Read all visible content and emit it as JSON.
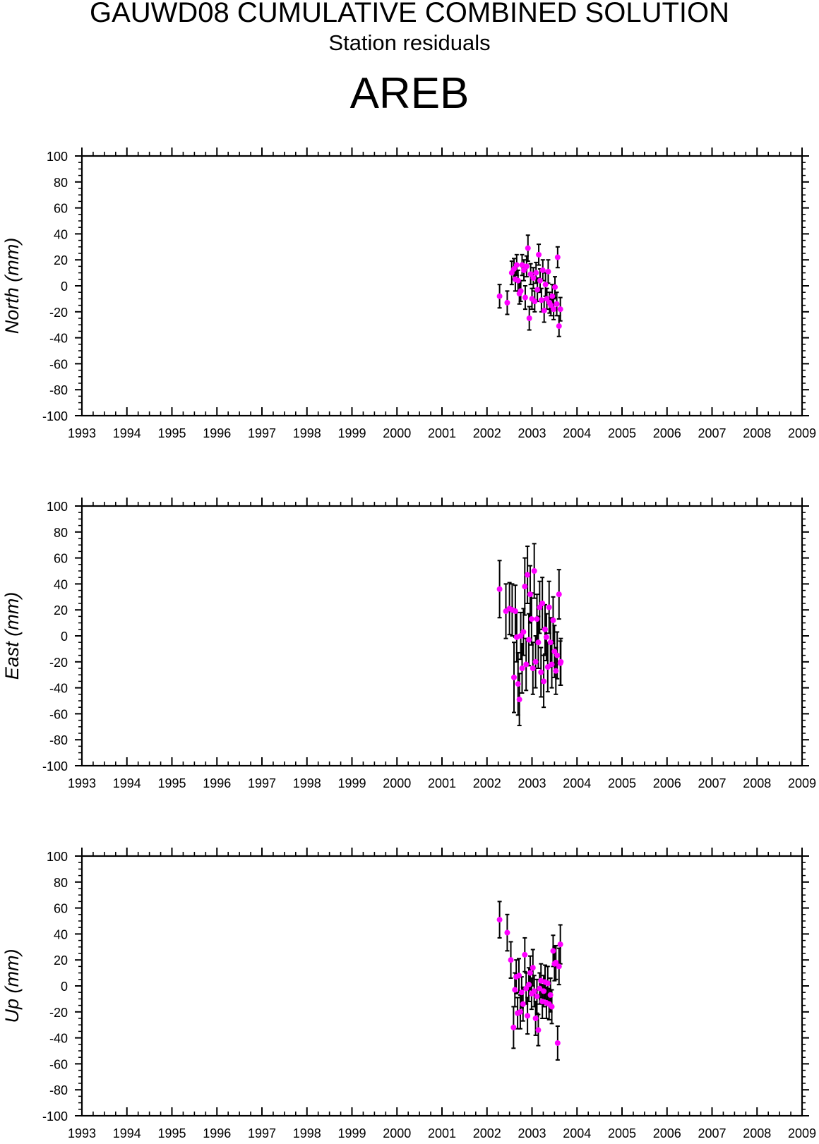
{
  "header": {
    "title": "GAUWD08 CUMULATIVE COMBINED SOLUTION",
    "subtitle": "Station residuals",
    "station": "AREB"
  },
  "colors": {
    "marker": "#ff00ff",
    "errorbar": "#000000",
    "axes": "#000000"
  },
  "chart_data": [
    {
      "type": "scatter",
      "ylabel": "North (mm)",
      "xlim": [
        1993,
        2009
      ],
      "ylim": [
        -100,
        100
      ],
      "xticks": [
        "1993",
        "1994",
        "1995",
        "1996",
        "1997",
        "1998",
        "1999",
        "2000",
        "2001",
        "2002",
        "2003",
        "2004",
        "2005",
        "2006",
        "2007",
        "2008",
        "2009"
      ],
      "yticks": [
        "100",
        "80",
        "60",
        "40",
        "20",
        "0",
        "-20",
        "-40",
        "-60",
        "-80",
        "-100"
      ],
      "grid": false,
      "series": [
        {
          "points": [
            [
              2002.28,
              -8,
              9
            ],
            [
              2002.45,
              -13,
              9
            ],
            [
              2002.55,
              10,
              9
            ],
            [
              2002.6,
              13,
              8
            ],
            [
              2002.63,
              5,
              9
            ],
            [
              2002.66,
              16,
              8
            ],
            [
              2002.69,
              4,
              8
            ],
            [
              2002.72,
              -6,
              8
            ],
            [
              2002.75,
              -4,
              8
            ],
            [
              2002.78,
              16,
              8
            ],
            [
              2002.82,
              12,
              8
            ],
            [
              2002.85,
              -9,
              9
            ],
            [
              2002.88,
              15,
              8
            ],
            [
              2002.91,
              29,
              10
            ],
            [
              2002.94,
              -25,
              9
            ],
            [
              2002.97,
              9,
              8
            ],
            [
              2003.0,
              -10,
              8
            ],
            [
              2003.03,
              6,
              8
            ],
            [
              2003.06,
              -12,
              8
            ],
            [
              2003.09,
              10,
              8
            ],
            [
              2003.12,
              -3,
              9
            ],
            [
              2003.15,
              24,
              8
            ],
            [
              2003.18,
              4,
              9
            ],
            [
              2003.21,
              -11,
              9
            ],
            [
              2003.24,
              12,
              8
            ],
            [
              2003.27,
              -19,
              9
            ],
            [
              2003.3,
              1,
              9
            ],
            [
              2003.33,
              -10,
              8
            ],
            [
              2003.36,
              11,
              9
            ],
            [
              2003.39,
              -13,
              8
            ],
            [
              2003.42,
              -15,
              8
            ],
            [
              2003.45,
              -8,
              9
            ],
            [
              2003.48,
              -18,
              8
            ],
            [
              2003.51,
              -1,
              8
            ],
            [
              2003.55,
              -14,
              9
            ],
            [
              2003.57,
              22,
              8
            ],
            [
              2003.6,
              -31,
              8
            ],
            [
              2003.63,
              -18,
              9
            ]
          ]
        }
      ]
    },
    {
      "type": "scatter",
      "ylabel": "East (mm)",
      "xlim": [
        1993,
        2009
      ],
      "ylim": [
        -100,
        100
      ],
      "xticks": [
        "1993",
        "1994",
        "1995",
        "1996",
        "1997",
        "1998",
        "1999",
        "2000",
        "2001",
        "2002",
        "2003",
        "2004",
        "2005",
        "2006",
        "2007",
        "2008",
        "2009"
      ],
      "yticks": [
        "100",
        "80",
        "60",
        "40",
        "20",
        "0",
        "-20",
        "-40",
        "-60",
        "-80",
        "-100"
      ],
      "grid": false,
      "series": [
        {
          "points": [
            [
              2002.28,
              36,
              22
            ],
            [
              2002.42,
              19,
              21
            ],
            [
              2002.5,
              21,
              20
            ],
            [
              2002.56,
              20,
              20
            ],
            [
              2002.6,
              -32,
              27
            ],
            [
              2002.63,
              19,
              20
            ],
            [
              2002.66,
              -1,
              19
            ],
            [
              2002.69,
              -37,
              24
            ],
            [
              2002.72,
              -49,
              20
            ],
            [
              2002.75,
              0,
              18
            ],
            [
              2002.78,
              -25,
              19
            ],
            [
              2002.81,
              3,
              18
            ],
            [
              2002.84,
              38,
              22
            ],
            [
              2002.87,
              -22,
              20
            ],
            [
              2002.9,
              47,
              22
            ],
            [
              2002.93,
              -3,
              20
            ],
            [
              2002.96,
              32,
              22
            ],
            [
              2002.99,
              13,
              20
            ],
            [
              2003.02,
              -25,
              20
            ],
            [
              2003.05,
              50,
              21
            ],
            [
              2003.08,
              -20,
              20
            ],
            [
              2003.11,
              13,
              19
            ],
            [
              2003.14,
              -5,
              20
            ],
            [
              2003.17,
              22,
              20
            ],
            [
              2003.2,
              -28,
              19
            ],
            [
              2003.23,
              25,
              20
            ],
            [
              2003.26,
              -35,
              20
            ],
            [
              2003.29,
              5,
              19
            ],
            [
              2003.32,
              -1,
              18
            ],
            [
              2003.35,
              -24,
              19
            ],
            [
              2003.38,
              22,
              20
            ],
            [
              2003.41,
              -5,
              19
            ],
            [
              2003.44,
              -22,
              18
            ],
            [
              2003.47,
              12,
              18
            ],
            [
              2003.5,
              -12,
              20
            ],
            [
              2003.53,
              -27,
              18
            ],
            [
              2003.56,
              -15,
              18
            ],
            [
              2003.6,
              32,
              19
            ],
            [
              2003.63,
              -21,
              17
            ],
            [
              2003.64,
              -20,
              18
            ]
          ]
        }
      ]
    },
    {
      "type": "scatter",
      "ylabel": "Up (mm)",
      "xlim": [
        1993,
        2009
      ],
      "ylim": [
        -100,
        100
      ],
      "xticks": [
        "1993",
        "1994",
        "1995",
        "1996",
        "1997",
        "1998",
        "1999",
        "2000",
        "2001",
        "2002",
        "2003",
        "2004",
        "2005",
        "2006",
        "2007",
        "2008",
        "2009"
      ],
      "yticks": [
        "100",
        "80",
        "60",
        "40",
        "20",
        "0",
        "-20",
        "-40",
        "-60",
        "-80",
        "-100"
      ],
      "grid": false,
      "series": [
        {
          "points": [
            [
              2002.28,
              51,
              14
            ],
            [
              2002.45,
              41,
              14
            ],
            [
              2002.53,
              20,
              14
            ],
            [
              2002.59,
              -32,
              16
            ],
            [
              2002.62,
              -3,
              13
            ],
            [
              2002.65,
              7,
              13
            ],
            [
              2002.68,
              -21,
              12
            ],
            [
              2002.71,
              8,
              13
            ],
            [
              2002.74,
              -20,
              13
            ],
            [
              2002.77,
              -5,
              12
            ],
            [
              2002.8,
              -14,
              13
            ],
            [
              2002.84,
              24,
              13
            ],
            [
              2002.87,
              -2,
              12
            ],
            [
              2002.9,
              -23,
              14
            ],
            [
              2002.93,
              1,
              13
            ],
            [
              2002.96,
              10,
              13
            ],
            [
              2002.99,
              -6,
              12
            ],
            [
              2003.02,
              14,
              14
            ],
            [
              2003.05,
              -4,
              12
            ],
            [
              2003.08,
              -25,
              13
            ],
            [
              2003.11,
              -8,
              13
            ],
            [
              2003.14,
              -34,
              12
            ],
            [
              2003.17,
              -2,
              12
            ],
            [
              2003.2,
              4,
              13
            ],
            [
              2003.23,
              -12,
              13
            ],
            [
              2003.26,
              -4,
              12
            ],
            [
              2003.29,
              3,
              13
            ],
            [
              2003.32,
              -13,
              12
            ],
            [
              2003.35,
              2,
              13
            ],
            [
              2003.38,
              -14,
              12
            ],
            [
              2003.41,
              -7,
              13
            ],
            [
              2003.44,
              -16,
              13
            ],
            [
              2003.47,
              27,
              12
            ],
            [
              2003.5,
              17,
              13
            ],
            [
              2003.53,
              18,
              13
            ],
            [
              2003.57,
              -44,
              13
            ],
            [
              2003.6,
              15,
              14
            ],
            [
              2003.63,
              32,
              15
            ]
          ]
        }
      ]
    }
  ]
}
